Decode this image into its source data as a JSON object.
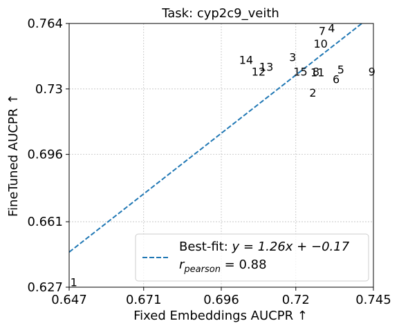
{
  "chart_data": {
    "type": "scatter",
    "title": "Task: cyp2c9_veith",
    "xlabel": "Fixed Embeddings AUCPR ↑",
    "ylabel": "FineTuned AUCPR ↑",
    "xlim": [
      0.647,
      0.745
    ],
    "ylim": [
      0.627,
      0.764
    ],
    "xticks": [
      0.647,
      0.671,
      0.696,
      0.72,
      0.745
    ],
    "xtick_labels": [
      "0.647",
      "0.671",
      "0.696",
      "0.72",
      "0.745"
    ],
    "yticks": [
      0.627,
      0.661,
      0.696,
      0.73,
      0.764
    ],
    "ytick_labels": [
      "0.627",
      "0.661",
      "0.696",
      "0.73",
      "0.764"
    ],
    "grid": true,
    "points": [
      {
        "label": "1",
        "x": 0.6485,
        "y": 0.6275
      },
      {
        "label": "2",
        "x": 0.7255,
        "y": 0.726
      },
      {
        "label": "3",
        "x": 0.719,
        "y": 0.7445
      },
      {
        "label": "4",
        "x": 0.7315,
        "y": 0.7595
      },
      {
        "label": "5",
        "x": 0.7345,
        "y": 0.738
      },
      {
        "label": "6",
        "x": 0.733,
        "y": 0.733
      },
      {
        "label": "7",
        "x": 0.7285,
        "y": 0.758
      },
      {
        "label": "8",
        "x": 0.7265,
        "y": 0.737
      },
      {
        "label": "9",
        "x": 0.7445,
        "y": 0.737
      },
      {
        "label": "10",
        "x": 0.728,
        "y": 0.7515
      },
      {
        "label": "11",
        "x": 0.727,
        "y": 0.7365
      },
      {
        "label": "12",
        "x": 0.708,
        "y": 0.737
      },
      {
        "label": "13",
        "x": 0.7105,
        "y": 0.7395
      },
      {
        "label": "14",
        "x": 0.704,
        "y": 0.743
      },
      {
        "label": "15",
        "x": 0.7215,
        "y": 0.737
      }
    ],
    "fit_line": {
      "slope": 1.26,
      "intercept": -0.17,
      "color": "#1f77b4",
      "style": "dashed"
    },
    "legend": {
      "placement": "lower-right",
      "line1_prefix": "Best-fit: ",
      "line1_eq": "y = 1.26x + −0.17",
      "line2_var": "r",
      "line2_sub": "pearson",
      "line2_val": " = 0.88"
    }
  }
}
